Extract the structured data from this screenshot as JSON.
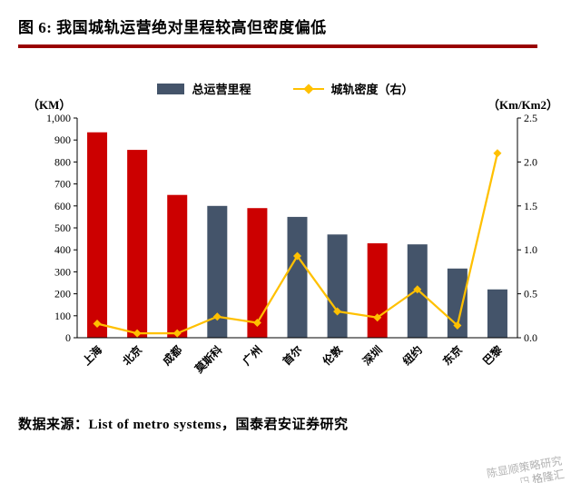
{
  "header": {
    "title": "图 6:  我国城轨运营绝对里程较高但密度偏低"
  },
  "legend": {
    "bar_label": "总运营里程",
    "line_label": "城轨密度（右）"
  },
  "axes": {
    "left_unit": "（KM）",
    "right_unit": "（Km/Km2）"
  },
  "chart_data": {
    "type": "bar",
    "subtype": "bar+line combo, dual axis",
    "categories": [
      "上海",
      "北京",
      "成都",
      "莫斯科",
      "广州",
      "首尔",
      "伦敦",
      "深圳",
      "纽约",
      "东京",
      "巴黎"
    ],
    "series": [
      {
        "name": "总运营里程",
        "type": "bar",
        "axis": "left",
        "values": [
          935,
          855,
          650,
          600,
          590,
          550,
          470,
          430,
          425,
          315,
          220
        ],
        "colors": [
          "#CC0000",
          "#CC0000",
          "#CC0000",
          "#44546A",
          "#CC0000",
          "#44546A",
          "#44546A",
          "#CC0000",
          "#44546A",
          "#44546A",
          "#44546A"
        ]
      },
      {
        "name": "城轨密度（右）",
        "type": "line",
        "axis": "right",
        "color": "#FFC000",
        "values": [
          0.16,
          0.05,
          0.05,
          0.24,
          0.17,
          0.93,
          0.3,
          0.23,
          0.55,
          0.14,
          2.1
        ]
      }
    ],
    "left_axis": {
      "min": 0,
      "max": 1000,
      "step": 100
    },
    "right_axis": {
      "min": 0,
      "max": 2.5,
      "step": 0.5
    },
    "grid": false,
    "legend_position": "top-center"
  },
  "footer": {
    "source": "数据来源：List of metro systems，国泰君安证券研究"
  },
  "watermark": {
    "line1": "陈显顺策略研究",
    "line2": "格隆汇"
  }
}
